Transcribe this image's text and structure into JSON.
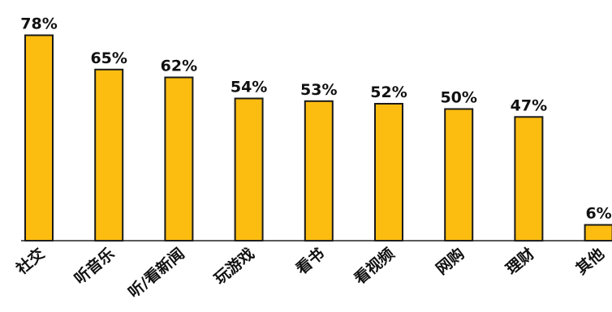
{
  "chart_data": {
    "type": "bar",
    "title": "",
    "xlabel": "",
    "ylabel": "",
    "categories": [
      "社交",
      "听音乐",
      "听/看新闻",
      "玩游戏",
      "看书",
      "看视频",
      "网购",
      "理财",
      "其他"
    ],
    "values": [
      78,
      65,
      62,
      54,
      53,
      52,
      50,
      47,
      6
    ],
    "value_labels": [
      "78%",
      "65%",
      "62%",
      "54%",
      "53%",
      "52%",
      "50%",
      "47%",
      "6%"
    ],
    "ylim": [
      0,
      80
    ],
    "grid": false,
    "legend": "none",
    "bar_color": "#FDBD10",
    "highlight_index": 0,
    "highlight_color": "#E8625E",
    "text_color": "#111111"
  }
}
